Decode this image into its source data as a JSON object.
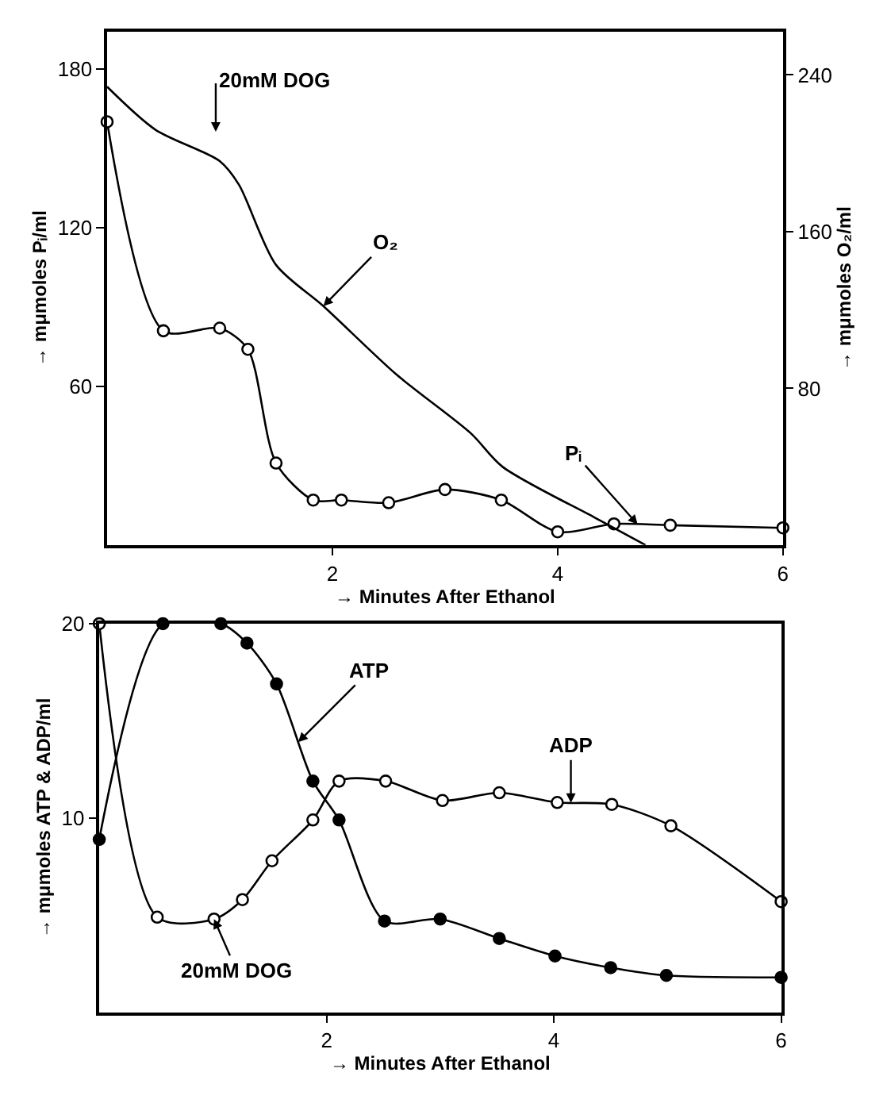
{
  "chart_data": [
    {
      "type": "line",
      "xlabel": "→ Minutes After Ethanol",
      "ylabel": "→ mμmoles Pᵢ/ml",
      "y2label": "→ mμmoles O₂/ml",
      "xlim": [
        0,
        6
      ],
      "xticks": [
        2,
        4,
        6
      ],
      "ylim": [
        0,
        194
      ],
      "yticks": [
        60,
        120,
        180
      ],
      "y2lim": [
        0,
        262
      ],
      "y2ticks": [
        80,
        160,
        240
      ],
      "annotations": [
        "20mM DOG",
        {
          "text": "O₂",
          "x": 1.92,
          "y": 90.3
        },
        {
          "text": "Pᵢ",
          "x": 4.71,
          "y": 7.8
        }
      ],
      "series": [
        {
          "color": "#000000",
          "axis": "y2",
          "marker": "none",
          "line_style": "solid",
          "x": [
            0,
            0.43,
            1.0,
            1.17,
            1.5,
            1.92,
            2.57,
            3.23,
            3.51,
            4.33,
            4.78
          ],
          "values": [
            234,
            212,
            196,
            184,
            143,
            122,
            87,
            57,
            40,
            14,
            0
          ]
        },
        {
          "color": "#000000",
          "marker": "circle-open",
          "line_style": "solid",
          "x": [
            0,
            0.5,
            1.0,
            1.25,
            1.5,
            1.83,
            2.08,
            2.5,
            3.0,
            3.5,
            4.0,
            4.5,
            5.0,
            6.0
          ],
          "values": [
            160,
            81,
            82,
            74,
            31,
            17,
            17,
            16,
            21,
            17,
            5,
            8,
            7.5,
            6.5
          ]
        }
      ]
    },
    {
      "type": "line",
      "xlabel": "→ Minutes After Ethanol",
      "ylabel": "→ mμmoles ATP & ADP/ml",
      "xlim": [
        0,
        6
      ],
      "xticks": [
        2,
        4,
        6
      ],
      "ylim": [
        0,
        20
      ],
      "yticks": [
        10,
        20
      ],
      "annotations": [
        {
          "text": "ATP",
          "x": 1.75,
          "y": 13.9
        },
        {
          "text": "ADP",
          "x": 4.15,
          "y": 10.78
        },
        {
          "text": "20mM DOG",
          "x": 1.01,
          "y": 4.8
        }
      ],
      "series": [
        {
          "color": "#000000",
          "marker": "circle",
          "line_style": "solid",
          "x": [
            0,
            0.56,
            1.07,
            1.3,
            1.56,
            1.88,
            2.11,
            2.51,
            3.0,
            3.52,
            4.01,
            4.5,
            4.99,
            6.0
          ],
          "values": [
            8.9,
            20,
            20,
            19.0,
            16.9,
            11.9,
            9.9,
            4.7,
            4.8,
            3.8,
            2.9,
            2.3,
            1.9,
            1.8
          ]
        },
        {
          "color": "#000000",
          "marker": "circle-open",
          "line_style": "solid",
          "x": [
            0,
            0.51,
            1.01,
            1.26,
            1.52,
            1.88,
            2.11,
            2.52,
            3.02,
            3.52,
            4.03,
            4.51,
            5.03,
            6.0
          ],
          "values": [
            20,
            4.9,
            4.8,
            5.8,
            7.8,
            9.9,
            11.9,
            11.9,
            10.9,
            11.3,
            10.8,
            10.7,
            9.6,
            5.7
          ]
        }
      ]
    }
  ]
}
